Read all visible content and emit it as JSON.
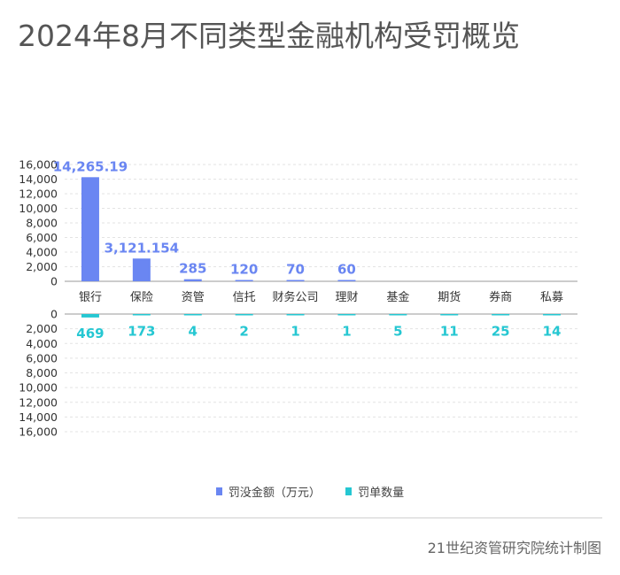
{
  "title": "2024年8月不同类型金融机构受罚概览",
  "source": "21世纪资管研究院统计制图",
  "colors": {
    "amount": "#6a86f2",
    "count": "#25c7d2",
    "grid": "#e3e3e3",
    "axis": "#9a9a9a"
  },
  "chart_data": {
    "type": "bar",
    "title": "",
    "categories": [
      "银行",
      "保险",
      "资管",
      "信托",
      "财务公司",
      "理财",
      "基金",
      "期货",
      "券商",
      "私募"
    ],
    "series": [
      {
        "name": "罚没金额（万元）",
        "values": [
          14265.19,
          3121.154,
          285,
          120,
          70,
          60,
          0,
          0,
          0,
          0
        ],
        "labels": [
          "14,265.19",
          "3,121.154",
          "285",
          "120",
          "70",
          "60",
          "",
          "",
          "",
          ""
        ]
      },
      {
        "name": "罚单数量",
        "values": [
          469,
          173,
          4,
          2,
          1,
          1,
          5,
          11,
          25,
          14
        ],
        "labels": [
          "469",
          "173",
          "4",
          "2",
          "1",
          "1",
          "5",
          "11",
          "25",
          "14"
        ]
      }
    ],
    "y_ticks_upper": [
      "16,000",
      "14,000",
      "12,000",
      "10,000",
      "8,000",
      "6,000",
      "4,000",
      "2,000",
      "0"
    ],
    "y_ticks_lower": [
      "0",
      "2,000",
      "4,000",
      "6,000",
      "8,000",
      "10,000",
      "12,000",
      "14,000",
      "16,000"
    ],
    "ylim": [
      0,
      16000
    ],
    "grid": true,
    "legend_position": "bottom"
  }
}
